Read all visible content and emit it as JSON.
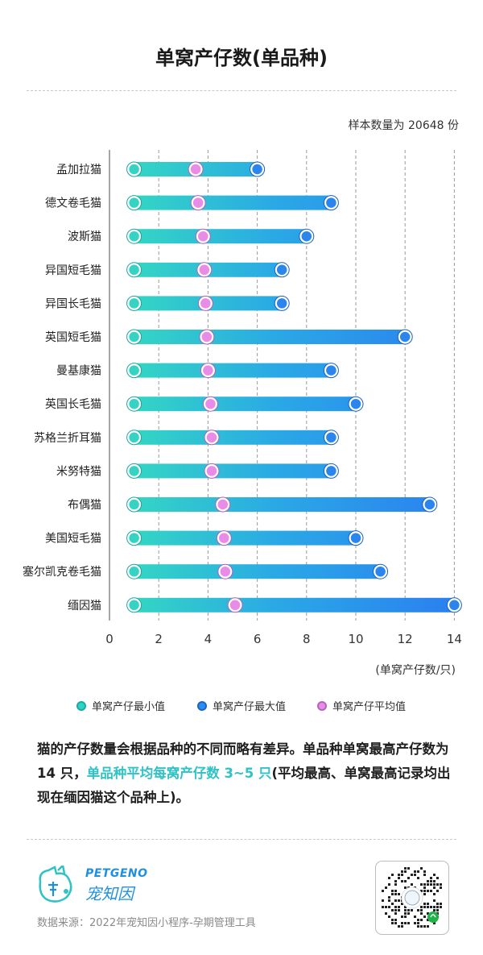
{
  "title": "单窝产仔数(单品种)",
  "sample_note": "样本数量为 20648 份",
  "colors": {
    "min": "#2ed3c6",
    "max": "#2a8df0",
    "avg": "#e88ce8",
    "highlight": "#2fc2c6",
    "brand": "#1f8fe0"
  },
  "chart_data": {
    "type": "range-bar",
    "categories": [
      "孟加拉猫",
      "德文卷毛猫",
      "波斯猫",
      "异国短毛猫",
      "异国长毛猫",
      "英国短毛猫",
      "曼基康猫",
      "英国长毛猫",
      "苏格兰折耳猫",
      "米努特猫",
      "布偶猫",
      "美国短毛猫",
      "塞尔凯克卷毛猫",
      "缅因猫"
    ],
    "series": [
      {
        "name": "单窝产仔最小值",
        "values": [
          1,
          1,
          1,
          1,
          1,
          1,
          1,
          1,
          1,
          1,
          1,
          1,
          1,
          1
        ]
      },
      {
        "name": "单窝产仔最大值",
        "values": [
          6,
          9,
          8,
          7,
          7,
          12,
          9,
          10,
          9,
          9,
          13,
          10,
          11,
          14
        ]
      },
      {
        "name": "单窝产仔平均值",
        "values": [
          3.5,
          3.6,
          3.8,
          3.85,
          3.9,
          3.95,
          4.0,
          4.1,
          4.15,
          4.15,
          4.6,
          4.65,
          4.7,
          5.1
        ]
      }
    ],
    "xticks": [
      "0",
      "2",
      "4",
      "6",
      "8",
      "10",
      "12",
      "14"
    ],
    "xlim": [
      0,
      14
    ],
    "xlabel": "(单窝产仔数/只)",
    "grid": true,
    "legend_position": "bottom"
  },
  "description": {
    "part1": "猫的产仔数量会根据品种的不同而略有差异。单品种单窝最高产仔数为 14 只，",
    "highlight": "单品种平均每窝产仔数 3~5 只",
    "part2": "(平均最高、单窝最高记录均出现在缅因猫这个品种上)。"
  },
  "footer": {
    "brand_en": "PETGENO",
    "brand_cn": "宠知因",
    "source": "数据来源：2022年宠知因小程序-孕期管理工具",
    "qr_label": "mini-program-qr-code"
  }
}
